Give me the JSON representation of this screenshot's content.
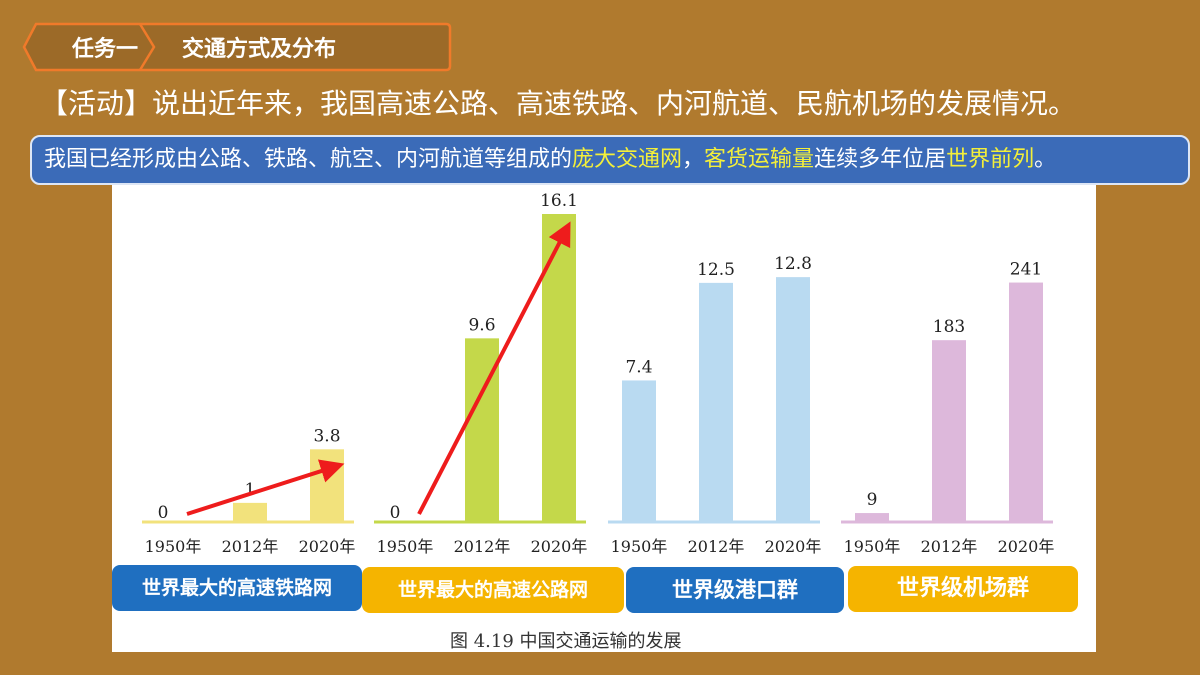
{
  "header": {
    "task_label": "任务一",
    "task_title": "交通方式及分布"
  },
  "activity": {
    "bracket_label": "【活动】",
    "text": "说出近年来，我国高速公路、高速铁路、内河航道、民航机场的发展情况。"
  },
  "info": {
    "part1": "我国已经形成由公路、铁路、航空、内河航道等组成的",
    "highlight1": "庞大交通网",
    "part2": "，",
    "highlight2": "客货运输量",
    "part3": "连续多年位居",
    "highlight3": "世界前列",
    "part4": "。"
  },
  "colors": {
    "background": "#b07a2e",
    "info_box": "#3b6bb8",
    "highlight": "#f3ef3a",
    "header_fill": "#9c6a28",
    "header_border": "#f07a2a",
    "arrow": "#ee1c1c"
  },
  "chart_data": [
    {
      "type": "bar",
      "categories": [
        "1950年",
        "2012年",
        "2020年"
      ],
      "values": [
        0,
        1,
        3.8
      ],
      "color": "#f2e27c",
      "ylim": [
        0,
        16.1
      ]
    },
    {
      "type": "bar",
      "categories": [
        "1950年",
        "2012年",
        "2020年"
      ],
      "values": [
        0,
        9.6,
        16.1
      ],
      "color": "#c4d84a",
      "ylim": [
        0,
        16.1
      ]
    },
    {
      "type": "bar",
      "categories": [
        "1950年",
        "2012年",
        "2020年"
      ],
      "values": [
        7.4,
        12.5,
        12.8
      ],
      "color": "#b9daf1",
      "ylim": [
        0,
        16.1
      ]
    },
    {
      "type": "bar",
      "categories": [
        "1950年",
        "2012年",
        "2020年"
      ],
      "values": [
        9,
        183,
        241
      ],
      "color": "#ddb8db",
      "ylim": [
        0,
        310
      ]
    }
  ],
  "badges": [
    {
      "text": "世界最大的高速铁路网",
      "color": "#1f6fc0"
    },
    {
      "text": "世界最大的高速公路网",
      "color": "#f5b400"
    },
    {
      "text": "世界级港口群",
      "color": "#1f6fc0"
    },
    {
      "text": "世界级机场群",
      "color": "#f5b400"
    }
  ],
  "caption": "图 4.19    中国交通运输的发展"
}
